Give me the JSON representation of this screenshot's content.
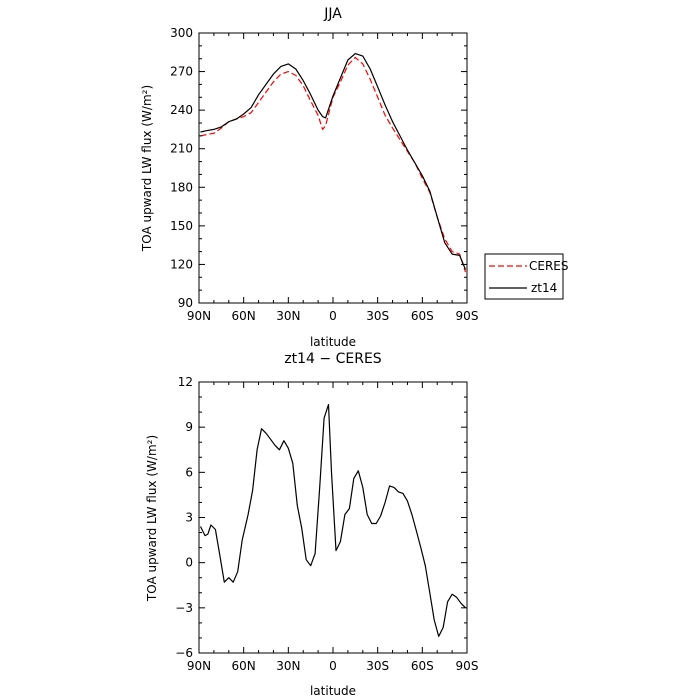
{
  "chart_data": [
    {
      "type": "line",
      "title": "JJA",
      "xlabel": "latitude",
      "ylabel": "TOA upward LW flux (W/m²)",
      "xlim": [
        90,
        -90
      ],
      "ylim": [
        90,
        300
      ],
      "x_ticks": [
        90,
        60,
        30,
        0,
        -30,
        -60,
        -90
      ],
      "x_tick_labels": [
        "90N",
        "60N",
        "30N",
        "0",
        "30S",
        "60S",
        "90S"
      ],
      "y_ticks": [
        90,
        120,
        150,
        180,
        210,
        240,
        270,
        300
      ],
      "y_tick_labels": [
        "90",
        "120",
        "150",
        "180",
        "210",
        "240",
        "270",
        "300"
      ],
      "grid": false,
      "legend": "right",
      "series": [
        {
          "name": "CERES",
          "color": "#ff0000",
          "dash": "dashed",
          "x": [
            89,
            85,
            80,
            75,
            70,
            65,
            60,
            55,
            50,
            45,
            40,
            35,
            30,
            25,
            20,
            15,
            10,
            7,
            5,
            0,
            -5,
            -10,
            -15,
            -20,
            -25,
            -30,
            -35,
            -40,
            -45,
            -50,
            -55,
            -60,
            -65,
            -70,
            -75,
            -80,
            -85,
            -89
          ],
          "y": [
            220,
            221,
            222,
            226,
            231,
            233,
            235,
            238,
            246,
            254,
            262,
            268,
            270,
            267,
            259,
            247,
            236,
            225,
            228,
            250,
            262,
            275,
            281,
            276,
            264,
            250,
            236,
            226,
            217,
            208,
            199,
            187,
            176,
            157,
            140,
            130,
            128,
            114
          ]
        },
        {
          "name": "zt14",
          "color": "#000000",
          "dash": "solid",
          "x": [
            89,
            85,
            80,
            75,
            70,
            65,
            60,
            55,
            50,
            45,
            40,
            35,
            30,
            25,
            20,
            15,
            10,
            7,
            5,
            0,
            -5,
            -10,
            -15,
            -20,
            -25,
            -30,
            -35,
            -40,
            -45,
            -50,
            -55,
            -60,
            -65,
            -70,
            -75,
            -80,
            -85,
            -89
          ],
          "y": [
            223,
            224,
            225,
            227,
            231,
            233,
            237,
            242,
            252,
            260,
            268,
            274,
            276,
            272,
            263,
            252,
            240,
            235,
            234,
            251,
            265,
            279,
            284,
            282,
            272,
            258,
            244,
            231,
            220,
            209,
            199,
            189,
            177,
            157,
            137,
            128,
            127,
            116
          ]
        }
      ]
    },
    {
      "type": "line",
      "title": "zt14 − CERES",
      "xlabel": "latitude",
      "ylabel": "TOA upward LW flux (W/m²)",
      "xlim": [
        90,
        -90
      ],
      "ylim": [
        -6,
        12
      ],
      "x_ticks": [
        90,
        60,
        30,
        0,
        -30,
        -60,
        -90
      ],
      "x_tick_labels": [
        "90N",
        "60N",
        "30N",
        "0",
        "30S",
        "60S",
        "90S"
      ],
      "y_ticks": [
        -6,
        -3,
        0,
        3,
        6,
        9,
        12
      ],
      "y_tick_labels": [
        "−6",
        "−3",
        "0",
        "3",
        "6",
        "9",
        "12"
      ],
      "grid": false,
      "series": [
        {
          "color": "#000000",
          "dash": "solid",
          "x": [
            89,
            86,
            84,
            82,
            79,
            76,
            73,
            70,
            67,
            64,
            61,
            57,
            54,
            51,
            48,
            45,
            42,
            39,
            36,
            33,
            30,
            27,
            24,
            21,
            18,
            15,
            12,
            9,
            6,
            3,
            1,
            -2,
            -5,
            -8,
            -11,
            -14,
            -17,
            -20,
            -23,
            -26,
            -29,
            -32,
            -35,
            -38,
            -41,
            -44,
            -47,
            -50,
            -53,
            -56,
            -59,
            -62,
            -65,
            -68,
            -71,
            -74,
            -77,
            -80,
            -83,
            -86,
            -89
          ],
          "y": [
            2.4,
            1.8,
            1.9,
            2.5,
            2.2,
            0.5,
            -1.3,
            -1.0,
            -1.3,
            -0.6,
            1.5,
            3.2,
            4.8,
            7.5,
            8.9,
            8.6,
            8.2,
            7.8,
            7.5,
            8.1,
            7.6,
            6.6,
            3.8,
            2.3,
            0.2,
            -0.2,
            0.6,
            4.9,
            9.6,
            10.5,
            6.0,
            0.8,
            1.4,
            3.2,
            3.6,
            5.6,
            6.1,
            5.0,
            3.2,
            2.6,
            2.6,
            3.1,
            4.0,
            5.1,
            5.0,
            4.7,
            4.6,
            4.1,
            3.2,
            2.1,
            1.0,
            -0.2,
            -2.0,
            -3.8,
            -4.9,
            -4.3,
            -2.6,
            -2.1,
            -2.3,
            -2.7,
            -3.0
          ]
        }
      ]
    }
  ]
}
